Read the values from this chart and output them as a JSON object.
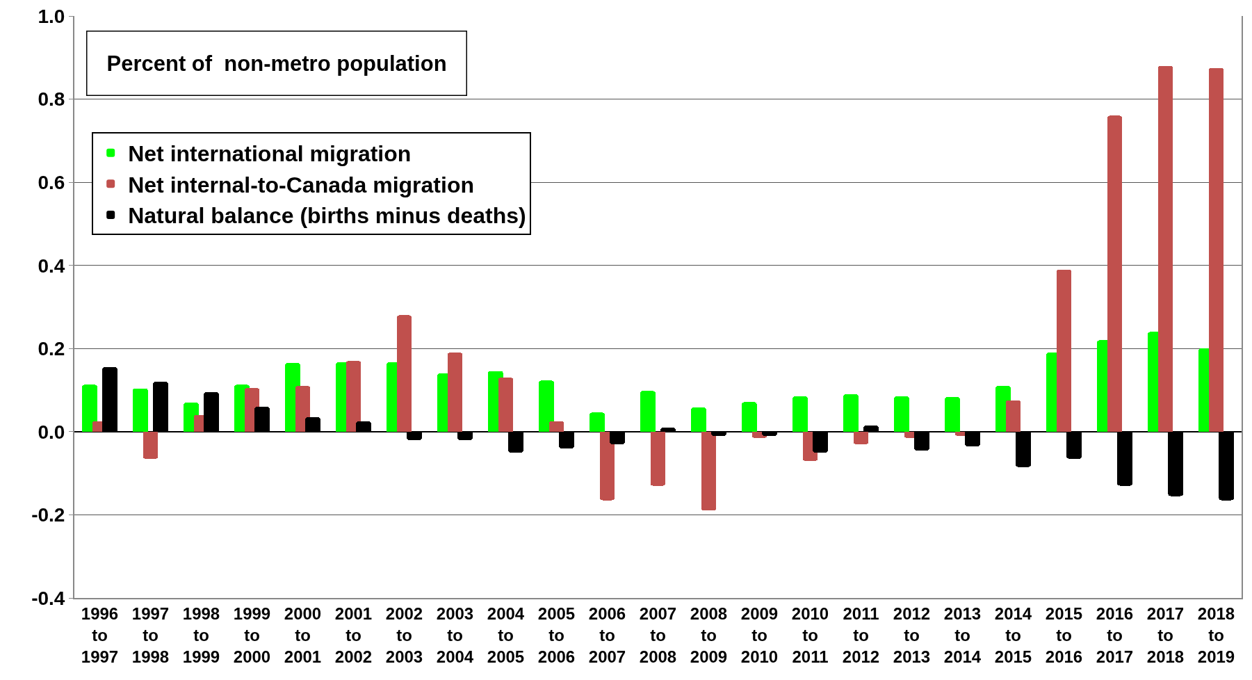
{
  "chart_data": {
    "type": "bar",
    "annotations": [
      "Percent of  non-metro population"
    ],
    "categories": [
      "1996 to 1997",
      "1997 to 1998",
      "1998 to 1999",
      "1999 to 2000",
      "2000 to 2001",
      "2001 to 2002",
      "2002 to 2003",
      "2003 to 2004",
      "2004 to 2005",
      "2005 to 2006",
      "2006 to 2007",
      "2007 to 2008",
      "2008 to 2009",
      "2009 to 2010",
      "2010 to 2011",
      "2011 to 2012",
      "2012 to 2013",
      "2013 to 2014",
      "2014 to 2015",
      "2015 to 2016",
      "2016 to 2017",
      "2017 to 2018",
      "2018 to 2019"
    ],
    "series": [
      {
        "name": "Net international migration",
        "color": "#00ff00",
        "values": [
          0.113,
          0.104,
          0.07,
          0.113,
          0.165,
          0.167,
          0.167,
          0.14,
          0.146,
          0.123,
          0.046,
          0.098,
          0.058,
          0.071,
          0.085,
          0.09,
          0.085,
          0.083,
          0.11,
          0.19,
          0.22,
          0.24,
          0.2
        ]
      },
      {
        "name": "Net internal-to-Canada migration",
        "color": "#c0504d",
        "values": [
          0.025,
          -0.065,
          0.04,
          0.105,
          0.11,
          0.17,
          0.28,
          0.19,
          0.13,
          0.025,
          -0.165,
          -0.13,
          -0.19,
          -0.015,
          -0.07,
          -0.03,
          -0.015,
          -0.01,
          0.075,
          0.39,
          0.76,
          0.88,
          0.875
        ]
      },
      {
        "name": "Natural balance (births minus deaths)",
        "color": "#000000",
        "values": [
          0.155,
          0.12,
          0.095,
          0.06,
          0.035,
          0.025,
          -0.02,
          -0.02,
          -0.05,
          -0.04,
          -0.03,
          0.01,
          -0.01,
          -0.01,
          -0.05,
          0.015,
          -0.045,
          -0.035,
          -0.085,
          -0.065,
          -0.13,
          -0.155,
          -0.165
        ]
      }
    ],
    "ylim": [
      -0.4,
      1.0
    ],
    "yticks": [
      {
        "value": -0.4,
        "label": "-0.4"
      },
      {
        "value": -0.2,
        "label": "-0.2"
      },
      {
        "value": 0,
        "label": "0.0"
      },
      {
        "value": 0.2,
        "label": "0.2"
      },
      {
        "value": 0.4,
        "label": "0.4"
      },
      {
        "value": 0.6,
        "label": "0.6"
      },
      {
        "value": 0.8,
        "label": "0.8"
      },
      {
        "value": 1.0,
        "label": "1.0"
      }
    ],
    "grid": "y",
    "legend": "top left"
  }
}
